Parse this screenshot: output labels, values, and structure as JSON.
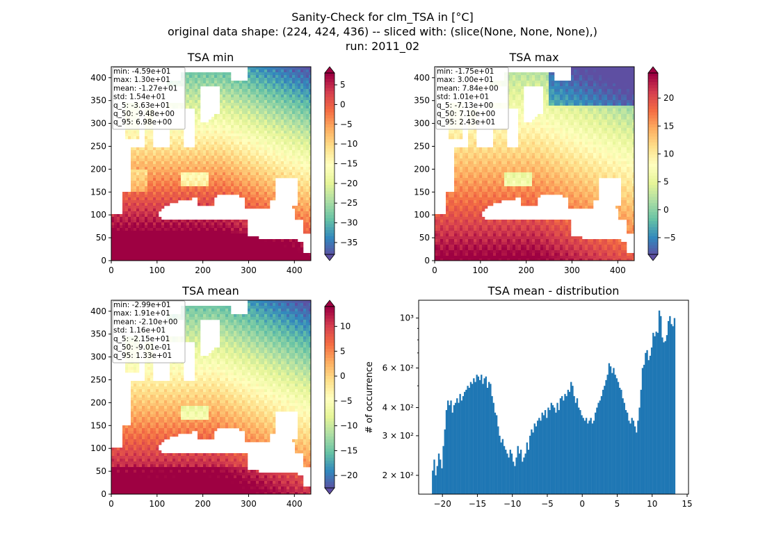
{
  "figure": {
    "title_lines": [
      "Sanity-Check for clm_TSA in [°C]",
      "original data shape: (224, 424, 436) -- sliced with: (slice(None, None, None),)",
      "run: 2011_02"
    ]
  },
  "colors": {
    "spectral_r": [
      "#5e4fa2",
      "#3288bd",
      "#66c2a5",
      "#abdda4",
      "#e6f598",
      "#ffffbf",
      "#fee08b",
      "#fdae61",
      "#f46d43",
      "#d53e4f",
      "#9e0142"
    ],
    "histogram_bar": "#1f77b4"
  },
  "chart_data": [
    {
      "type": "heatmap",
      "panel": "tsa_min",
      "title": "TSA min",
      "xticks": [
        "0",
        "100",
        "200",
        "300",
        "400"
      ],
      "yticks": [
        "0",
        "50",
        "100",
        "150",
        "200",
        "250",
        "300",
        "350",
        "400"
      ],
      "xlim": [
        0,
        436
      ],
      "ylim": [
        0,
        424
      ],
      "colorbar": {
        "min": -38,
        "max": 8,
        "ticks": [
          "5",
          "0",
          "−5",
          "−10",
          "−15",
          "−20",
          "−25",
          "−30",
          "−35"
        ],
        "tick_values": [
          5,
          0,
          -5,
          -10,
          -15,
          -20,
          -25,
          -30,
          -35
        ],
        "extend": "both"
      },
      "stats": [
        "min: -4.59e+01",
        "max: 1.30e+01",
        "mean: -1.27e+01",
        "std: 1.54e+01",
        "q_5: -3.63e+01",
        "q_50: -9.48e+00",
        "q_95: 6.98e+00"
      ]
    },
    {
      "type": "heatmap",
      "panel": "tsa_max",
      "title": "TSA max",
      "xticks": [
        "0",
        "100",
        "200",
        "300",
        "400"
      ],
      "yticks": [
        "0",
        "50",
        "100",
        "150",
        "200",
        "250",
        "300",
        "350",
        "400"
      ],
      "xlim": [
        0,
        436
      ],
      "ylim": [
        0,
        424
      ],
      "colorbar": {
        "min": -8,
        "max": 24.5,
        "ticks": [
          "20",
          "15",
          "10",
          "5",
          "0",
          "−5"
        ],
        "tick_values": [
          20,
          15,
          10,
          5,
          0,
          -5
        ],
        "extend": "both"
      },
      "stats": [
        "min: -1.75e+01",
        "max: 3.00e+01",
        "mean: 7.84e+00",
        "std: 1.01e+01",
        "q_5: -7.13e+00",
        "q_50: 7.10e+00",
        "q_95: 2.43e+01"
      ]
    },
    {
      "type": "heatmap",
      "panel": "tsa_mean",
      "title": "TSA mean",
      "xticks": [
        "0",
        "100",
        "200",
        "300",
        "400"
      ],
      "yticks": [
        "0",
        "50",
        "100",
        "150",
        "200",
        "250",
        "300",
        "350",
        "400"
      ],
      "xlim": [
        0,
        436
      ],
      "ylim": [
        0,
        424
      ],
      "colorbar": {
        "min": -22.5,
        "max": 14,
        "ticks": [
          "10",
          "5",
          "0",
          "−5",
          "−10",
          "−15",
          "−20"
        ],
        "tick_values": [
          10,
          5,
          0,
          -5,
          -10,
          -15,
          -20
        ],
        "extend": "both"
      },
      "stats": [
        "min: -2.99e+01",
        "max: 1.91e+01",
        "mean: -2.10e+00",
        "std: 1.16e+01",
        "q_5: -2.15e+01",
        "q_50: -9.01e-01",
        "q_95: 1.33e+01"
      ]
    },
    {
      "type": "bar",
      "panel": "tsa_mean_distribution",
      "title": "TSA mean - distribution",
      "ylabel": "# of occurrence",
      "xlim": [
        -23.4,
        15.2
      ],
      "ylim": [
        165,
        1200
      ],
      "yscale": "log",
      "xticks": [
        "−20",
        "−15",
        "−10",
        "−5",
        "0",
        "5",
        "10",
        "15"
      ],
      "xtick_values": [
        -20,
        -15,
        -10,
        -5,
        0,
        5,
        10,
        15
      ],
      "yticks": [
        {
          "value": 200,
          "label": "2 × 10²"
        },
        {
          "value": 300,
          "label": "3 × 10²"
        },
        {
          "value": 400,
          "label": "4 × 10²"
        },
        {
          "value": 600,
          "label": "6 × 10²"
        },
        {
          "value": 1000,
          "label": "10³"
        }
      ],
      "bin_range": [
        -21.5,
        13.3
      ],
      "counts": [
        210,
        235,
        200,
        220,
        250,
        235,
        215,
        270,
        320,
        390,
        430,
        410,
        430,
        380,
        410,
        420,
        440,
        420,
        460,
        430,
        450,
        470,
        480,
        500,
        490,
        520,
        510,
        540,
        520,
        560,
        550,
        530,
        560,
        510,
        540,
        550,
        490,
        520,
        510,
        450,
        420,
        380,
        370,
        330,
        300,
        280,
        290,
        270,
        260,
        250,
        240,
        260,
        250,
        230,
        220,
        240,
        270,
        250,
        260,
        230,
        240,
        250,
        280,
        260,
        300,
        320,
        310,
        340,
        330,
        350,
        360,
        350,
        380,
        370,
        390,
        360,
        400,
        390,
        420,
        410,
        400,
        380,
        420,
        390,
        440,
        450,
        430,
        460,
        450,
        480,
        470,
        520,
        500,
        450,
        420,
        440,
        400,
        390,
        370,
        360,
        350,
        360,
        340,
        350,
        360,
        340,
        350,
        380,
        400,
        420,
        430,
        450,
        480,
        500,
        530,
        560,
        630,
        610,
        570,
        600,
        560,
        540,
        520,
        490,
        480,
        440,
        420,
        390,
        380,
        350,
        340,
        360,
        350,
        330,
        310,
        350,
        400,
        480,
        600,
        620,
        700,
        720,
        650,
        680,
        740,
        860,
        830,
        870,
        860,
        1080,
        1020,
        820,
        780,
        790,
        840,
        970,
        1020,
        940,
        920,
        1000
      ]
    }
  ]
}
